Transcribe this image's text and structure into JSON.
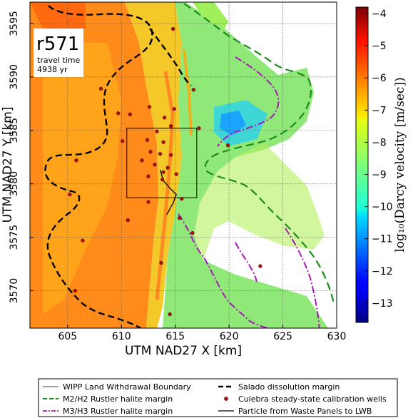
{
  "chart_data": {
    "type": "heatmap",
    "title": "",
    "xlabel": "UTM NAD27 X [km]",
    "ylabel": "UTM NAD27 Y [km]",
    "xlim": [
      601.5,
      630
    ],
    "ylim": [
      3566.5,
      3597
    ],
    "x_ticks": [
      605,
      610,
      615,
      620,
      625,
      630
    ],
    "y_ticks": [
      3570,
      3575,
      3580,
      3585,
      3590,
      3595
    ],
    "grid": true,
    "annotation": {
      "realization": "r571",
      "travel_time_label": "travel time",
      "travel_time_value": "4938 yr"
    },
    "colorbar": {
      "label": "log₁₀(Darcy velocity [m/sec])",
      "min": -13.6,
      "max": -3.8,
      "ticks": [
        -4,
        -5,
        -6,
        -7,
        -8,
        -9,
        -10,
        -11,
        -12,
        -13
      ],
      "colormap": "jet"
    },
    "wipp_box": {
      "x": [
        610.5,
        617
      ],
      "y": [
        3578.7,
        3585.2
      ]
    },
    "wells": [
      {
        "x": 614.8,
        "y": 3594.5
      },
      {
        "x": 608.1,
        "y": 3588.9
      },
      {
        "x": 616.7,
        "y": 3588.8
      },
      {
        "x": 612.6,
        "y": 3587.2
      },
      {
        "x": 614.9,
        "y": 3587.0
      },
      {
        "x": 610.8,
        "y": 3586.5
      },
      {
        "x": 614.0,
        "y": 3586.2
      },
      {
        "x": 614.6,
        "y": 3585.4
      },
      {
        "x": 617.2,
        "y": 3585.2
      },
      {
        "x": 613.3,
        "y": 3584.9
      },
      {
        "x": 612.4,
        "y": 3584.1
      },
      {
        "x": 613.9,
        "y": 3583.9
      },
      {
        "x": 612.7,
        "y": 3583.0
      },
      {
        "x": 613.6,
        "y": 3582.8
      },
      {
        "x": 614.6,
        "y": 3582.7
      },
      {
        "x": 611.9,
        "y": 3582.2
      },
      {
        "x": 613.1,
        "y": 3581.8
      },
      {
        "x": 614.3,
        "y": 3581.5
      },
      {
        "x": 613.9,
        "y": 3581.1
      },
      {
        "x": 612.5,
        "y": 3580.7
      },
      {
        "x": 615.1,
        "y": 3580.9
      },
      {
        "x": 613.8,
        "y": 3580.4
      },
      {
        "x": 612.5,
        "y": 3578.3
      },
      {
        "x": 615.6,
        "y": 3578.6
      },
      {
        "x": 610.6,
        "y": 3576.6
      },
      {
        "x": 615.4,
        "y": 3576.8
      },
      {
        "x": 616.6,
        "y": 3575.4
      },
      {
        "x": 606.4,
        "y": 3574.7
      },
      {
        "x": 613.7,
        "y": 3572.6
      },
      {
        "x": 622.9,
        "y": 3572.3
      },
      {
        "x": 605.7,
        "y": 3570.0
      },
      {
        "x": 605.8,
        "y": 3582.2
      },
      {
        "x": 605.2,
        "y": 3579.0
      },
      {
        "x": 614.5,
        "y": 3567.8
      },
      {
        "x": 619.9,
        "y": 3583.6
      },
      {
        "x": 610.1,
        "y": 3584.0
      },
      {
        "x": 609.7,
        "y": 3586.6
      }
    ],
    "particle_path": [
      [
        613.6,
        3581.3
      ],
      [
        613.9,
        3580.3
      ],
      [
        614.5,
        3579.6
      ],
      [
        615.1,
        3579.0
      ],
      [
        614.8,
        3578.2
      ],
      [
        614.2,
        3577.1
      ]
    ],
    "legend": {
      "placement": "bottom",
      "entries": [
        {
          "label": "WIPP Land Withdrawal Boundary",
          "style": "thin-line",
          "color": "#000000"
        },
        {
          "label": "Salado dissolution margin",
          "style": "thick-dash",
          "color": "#000000"
        },
        {
          "label": "M2/H2 Rustler halite margin",
          "style": "dash",
          "color": "#1a8c1a"
        },
        {
          "label": "Culebra steady-state calibration wells",
          "style": "dot",
          "color": "#b01010"
        },
        {
          "label": "M3/H3 Rustler halite margin",
          "style": "dash-dot",
          "color": "#a81ab8"
        },
        {
          "label": "Particle from Waste Panels to LWB",
          "style": "line",
          "color": "#000000"
        }
      ]
    }
  }
}
